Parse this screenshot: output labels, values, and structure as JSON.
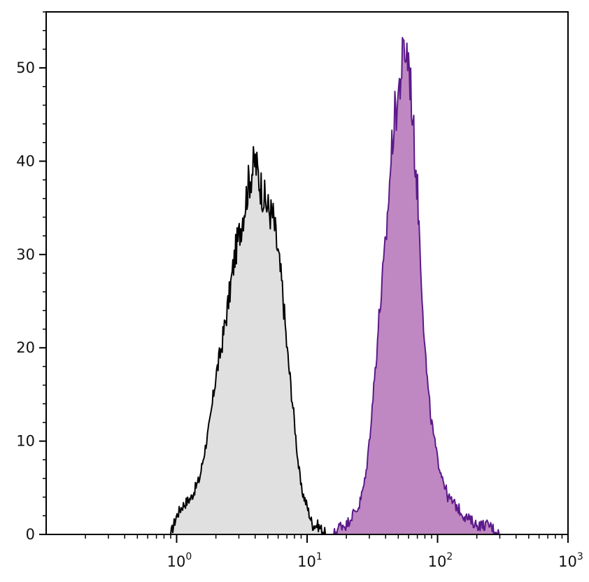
{
  "chart_data": {
    "type": "area",
    "title": "",
    "xlabel": "",
    "ylabel": "",
    "x_scale": "log",
    "xlim": [
      0.1,
      1000
    ],
    "ylim": [
      0,
      56
    ],
    "grid": false,
    "legend": "none",
    "x_ticks": [
      {
        "base": "10",
        "exp": "0",
        "value": 1
      },
      {
        "base": "10",
        "exp": "1",
        "value": 10
      },
      {
        "base": "10",
        "exp": "2",
        "value": 100
      },
      {
        "base": "10",
        "exp": "3",
        "value": 1000
      }
    ],
    "y_ticks": [
      "0",
      "10",
      "20",
      "30",
      "40",
      "50"
    ],
    "y_tick_values": [
      0,
      10,
      20,
      30,
      40,
      50
    ],
    "series": [
      {
        "line_color": "#000000",
        "fill_color": "#e0e0e0",
        "x": [
          0.9,
          1.0,
          1.1,
          1.3,
          1.5,
          1.8,
          2.0,
          2.2,
          2.5,
          2.8,
          3.0,
          3.3,
          3.6,
          4.0,
          4.3,
          4.7,
          5.0,
          5.5,
          6.0,
          6.5,
          7.0,
          7.5,
          8.0,
          8.5,
          9.0,
          10.0,
          11.0,
          12.0,
          14.0
        ],
        "y": [
          0,
          2,
          3,
          4,
          6,
          12,
          17,
          20,
          25,
          30,
          32,
          35,
          38,
          40,
          38,
          36,
          35,
          34,
          30,
          26,
          20,
          16,
          12,
          8,
          5,
          3,
          1,
          1,
          0
        ]
      },
      {
        "line_color": "#5b1a8a",
        "fill_color": "#c088c2",
        "x": [
          16,
          18,
          20,
          22,
          25,
          28,
          30,
          33,
          36,
          40,
          43,
          46,
          50,
          53,
          56,
          60,
          63,
          66,
          70,
          75,
          80,
          85,
          90,
          100,
          110,
          120,
          140,
          160,
          200,
          250,
          300
        ],
        "y": [
          0,
          1,
          1,
          2,
          3,
          6,
          10,
          17,
          24,
          31,
          38,
          44,
          47,
          50,
          52,
          51,
          47,
          42,
          37,
          28,
          20,
          15,
          12,
          8,
          6,
          4,
          3,
          2,
          1,
          1,
          0
        ]
      }
    ]
  }
}
